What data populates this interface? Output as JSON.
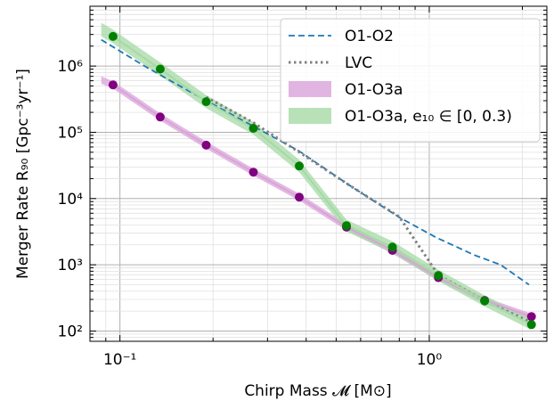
{
  "chart_data": {
    "type": "line",
    "xlabel": "Chirp Mass 𝓜 [M⊙]",
    "ylabel": "Merger Rate R₉₀ [Gpc⁻³yr⁻¹]",
    "x_scale": "log",
    "y_scale": "log",
    "xlim": [
      0.08,
      2.4
    ],
    "ylim": [
      70,
      8000000
    ],
    "x_ticks": [
      {
        "value": 0.1,
        "label": "10⁻¹"
      },
      {
        "value": 1,
        "label": "10⁰"
      }
    ],
    "y_ticks": [
      {
        "value": 100,
        "label": "10²"
      },
      {
        "value": 1000,
        "label": "10³"
      },
      {
        "value": 10000,
        "label": "10⁴"
      },
      {
        "value": 100000,
        "label": "10⁵"
      },
      {
        "value": 1000000,
        "label": "10⁶"
      }
    ],
    "grid": true,
    "legend_position": "top-right",
    "series": [
      {
        "name": "O1-O2",
        "style": "dashed",
        "color": "#1f77b4",
        "x": [
          0.087,
          0.12,
          0.17,
          0.25,
          0.38,
          0.55,
          0.8,
          1.05,
          1.4,
          1.7,
          2.1
        ],
        "y": [
          2500000,
          1000000,
          400000,
          150000,
          52000,
          16000,
          5200,
          2600,
          1400,
          1000,
          500
        ]
      },
      {
        "name": "LVC",
        "style": "dotted",
        "color": "#808080",
        "x": [
          0.19,
          0.27,
          0.38,
          0.55,
          0.8,
          1.07,
          1.5,
          2.1
        ],
        "y": [
          340000,
          140000,
          50000,
          16000,
          5300,
          700,
          290,
          140
        ]
      },
      {
        "name": "O1-O3a",
        "style": "band",
        "color": "#800080",
        "band_color": "#d9a3d9",
        "x": [
          0.095,
          0.135,
          0.19,
          0.27,
          0.38,
          0.54,
          0.76,
          1.07,
          1.51,
          2.14
        ],
        "y": [
          520000,
          170000,
          64000,
          25000,
          10500,
          3700,
          1650,
          640,
          290,
          165
        ],
        "band_x": [
          0.087,
          2.14
        ],
        "band_y_start": [
          700000,
          540000
        ],
        "band_y_end": [
          185000,
          150000
        ]
      },
      {
        "name": "O1-O3a, e₁₀ ∈ [0, 0.3)",
        "style": "band",
        "color": "#008000",
        "band_color": "#a6d9a6",
        "x": [
          0.095,
          0.135,
          0.19,
          0.27,
          0.38,
          0.54,
          0.76,
          1.07,
          1.51,
          2.14
        ],
        "y": [
          2800000,
          900000,
          290000,
          115000,
          31000,
          3900,
          1850,
          690,
          285,
          125
        ],
        "band_start": [
          0.087,
          4500000,
          2800000
        ],
        "band_end": [
          2.14,
          160000,
          110000
        ]
      }
    ]
  }
}
